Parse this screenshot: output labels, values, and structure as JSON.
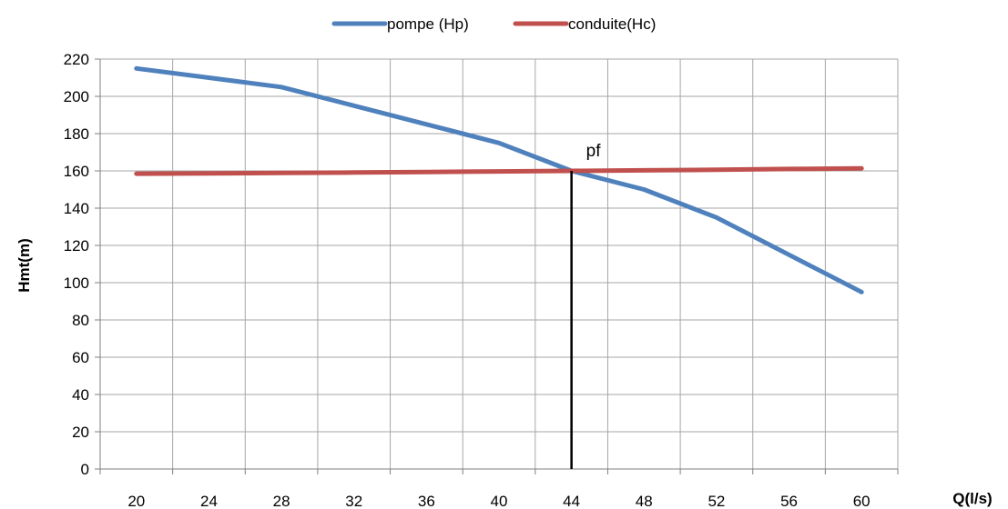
{
  "chart_data": {
    "type": "line",
    "x": [
      20,
      24,
      28,
      32,
      36,
      40,
      44,
      48,
      52,
      56,
      60
    ],
    "series": [
      {
        "name": "pompe (Hp)",
        "color": "#4F81BD",
        "values": [
          215,
          210,
          205,
          195,
          185,
          175,
          160,
          150,
          135,
          115,
          95
        ]
      },
      {
        "name": "conduite(Hc)",
        "color": "#C0504D",
        "values": [
          158.5,
          158.7,
          158.9,
          159.1,
          159.4,
          159.7,
          160,
          160.3,
          160.6,
          161,
          161.3
        ]
      }
    ],
    "xticks": [
      "20",
      "24",
      "28",
      "32",
      "36",
      "40",
      "44",
      "48",
      "52",
      "56",
      "60"
    ],
    "yticks": [
      "0",
      "20",
      "40",
      "60",
      "80",
      "100",
      "120",
      "140",
      "160",
      "180",
      "200",
      "220"
    ],
    "xlabel": "Q(l/s)",
    "ylabel": "Hmt(m)",
    "ylim": [
      0,
      220
    ],
    "grid": true,
    "legend_position": "top",
    "annotations": [
      {
        "text": "pf",
        "x": 44,
        "y": 160
      }
    ],
    "operating_point": {
      "x": 44,
      "y": 160
    }
  }
}
